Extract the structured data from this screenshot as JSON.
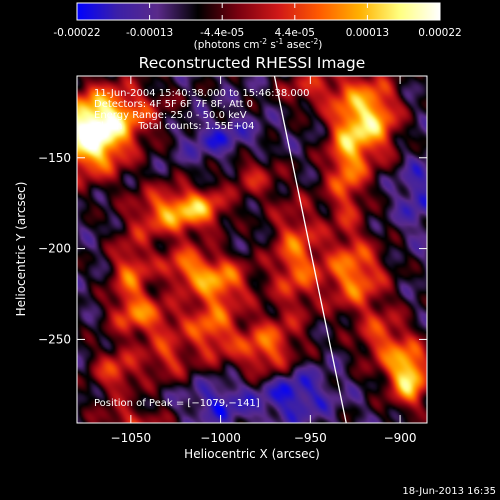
{
  "colorbar": {
    "ticks": [
      "-0.00022",
      "-0.00013",
      "-4.4e-05",
      "4.4e-05",
      "0.00013",
      "0.00022"
    ],
    "unit_parts": {
      "open": "(photons cm",
      "exp1": "-2",
      "mid1": " s",
      "exp2": "-1",
      "mid2": " asec",
      "exp3": "-2",
      "close": ")"
    },
    "colors": [
      "#0000ff",
      "#3b1fa8",
      "#5a2a8a",
      "#000000",
      "#7a0010",
      "#d01818",
      "#ff5a00",
      "#ffb000",
      "#ffff80",
      "#ffffff"
    ]
  },
  "chart_data": {
    "type": "heatmap",
    "title": "Reconstructed RHESSI Image",
    "xlabel": "Heliocentric X (arcsec)",
    "ylabel": "Heliocentric Y (arcsec)",
    "xlim": [
      -1080,
      -885
    ],
    "ylim": [
      -296,
      -105
    ],
    "x_ticks": [
      {
        "value": -1050,
        "label": "−1050"
      },
      {
        "value": -1000,
        "label": "−1000"
      },
      {
        "value": -950,
        "label": "−950"
      },
      {
        "value": -900,
        "label": "−900"
      }
    ],
    "y_ticks": [
      {
        "value": -150,
        "label": "−150"
      },
      {
        "value": -200,
        "label": "−200"
      },
      {
        "value": -250,
        "label": "−250"
      }
    ],
    "annotations": [
      "11-Jun-2004 15:40:38.000 to 15:46:38.000",
      "Detectors: 4F 5F 6F 7F 8F, Att 0",
      "Energy Range: 25.0 - 50.0 keV",
      "Clean     Total counts: 1.55E+04"
    ],
    "peak_label": "Position of Peak = [−1079,−141]",
    "limb_line": [
      [
        -970,
        -105
      ],
      [
        -930,
        -296
      ]
    ],
    "blobs": [
      {
        "x": -1072,
        "y": -140,
        "sx": 14,
        "sy": 14,
        "a": 1.25
      },
      {
        "x": -1060,
        "y": -125,
        "sx": 20,
        "sy": 12,
        "a": 0.7
      },
      {
        "x": -1030,
        "y": -180,
        "sx": 13,
        "sy": 10,
        "a": 0.8
      },
      {
        "x": -1010,
        "y": -178,
        "sx": 10,
        "sy": 8,
        "a": 0.7
      },
      {
        "x": -1050,
        "y": -215,
        "sx": 8,
        "sy": 16,
        "a": 0.7
      },
      {
        "x": -1020,
        "y": -210,
        "sx": 10,
        "sy": 8,
        "a": 0.65
      },
      {
        "x": -1000,
        "y": -218,
        "sx": 12,
        "sy": 10,
        "a": 0.8
      },
      {
        "x": -1040,
        "y": -238,
        "sx": 14,
        "sy": 8,
        "a": 0.6
      },
      {
        "x": -1005,
        "y": -245,
        "sx": 10,
        "sy": 12,
        "a": 0.7
      },
      {
        "x": -1030,
        "y": -260,
        "sx": 9,
        "sy": 9,
        "a": 0.55
      },
      {
        "x": -975,
        "y": -255,
        "sx": 12,
        "sy": 12,
        "a": 0.75
      },
      {
        "x": -958,
        "y": -205,
        "sx": 10,
        "sy": 22,
        "a": 0.75
      },
      {
        "x": -930,
        "y": -150,
        "sx": 8,
        "sy": 28,
        "a": 0.8
      },
      {
        "x": -915,
        "y": -128,
        "sx": 10,
        "sy": 16,
        "a": 1.0
      },
      {
        "x": -925,
        "y": -215,
        "sx": 12,
        "sy": 14,
        "a": 0.8
      },
      {
        "x": -910,
        "y": -250,
        "sx": 10,
        "sy": 12,
        "a": 0.6
      },
      {
        "x": -895,
        "y": -270,
        "sx": 8,
        "sy": 12,
        "a": 1.15
      },
      {
        "x": -1058,
        "y": -268,
        "sx": 10,
        "sy": 10,
        "a": 0.6
      },
      {
        "x": -1050,
        "y": -295,
        "sx": 14,
        "sy": 6,
        "a": 0.5
      },
      {
        "x": -982,
        "y": -160,
        "sx": 10,
        "sy": 10,
        "a": 0.45
      },
      {
        "x": -950,
        "y": -112,
        "sx": 12,
        "sy": 8,
        "a": 0.5
      },
      {
        "x": -1000,
        "y": -140,
        "sx": 16,
        "sy": 8,
        "a": -0.35
      },
      {
        "x": -960,
        "y": -280,
        "sx": 14,
        "sy": 10,
        "a": -0.5
      },
      {
        "x": -1000,
        "y": -285,
        "sx": 12,
        "sy": 8,
        "a": -0.4
      },
      {
        "x": -890,
        "y": -170,
        "sx": 8,
        "sy": 14,
        "a": -0.35
      }
    ]
  },
  "footer": {
    "date": "18-Jun-2013 16:35"
  }
}
